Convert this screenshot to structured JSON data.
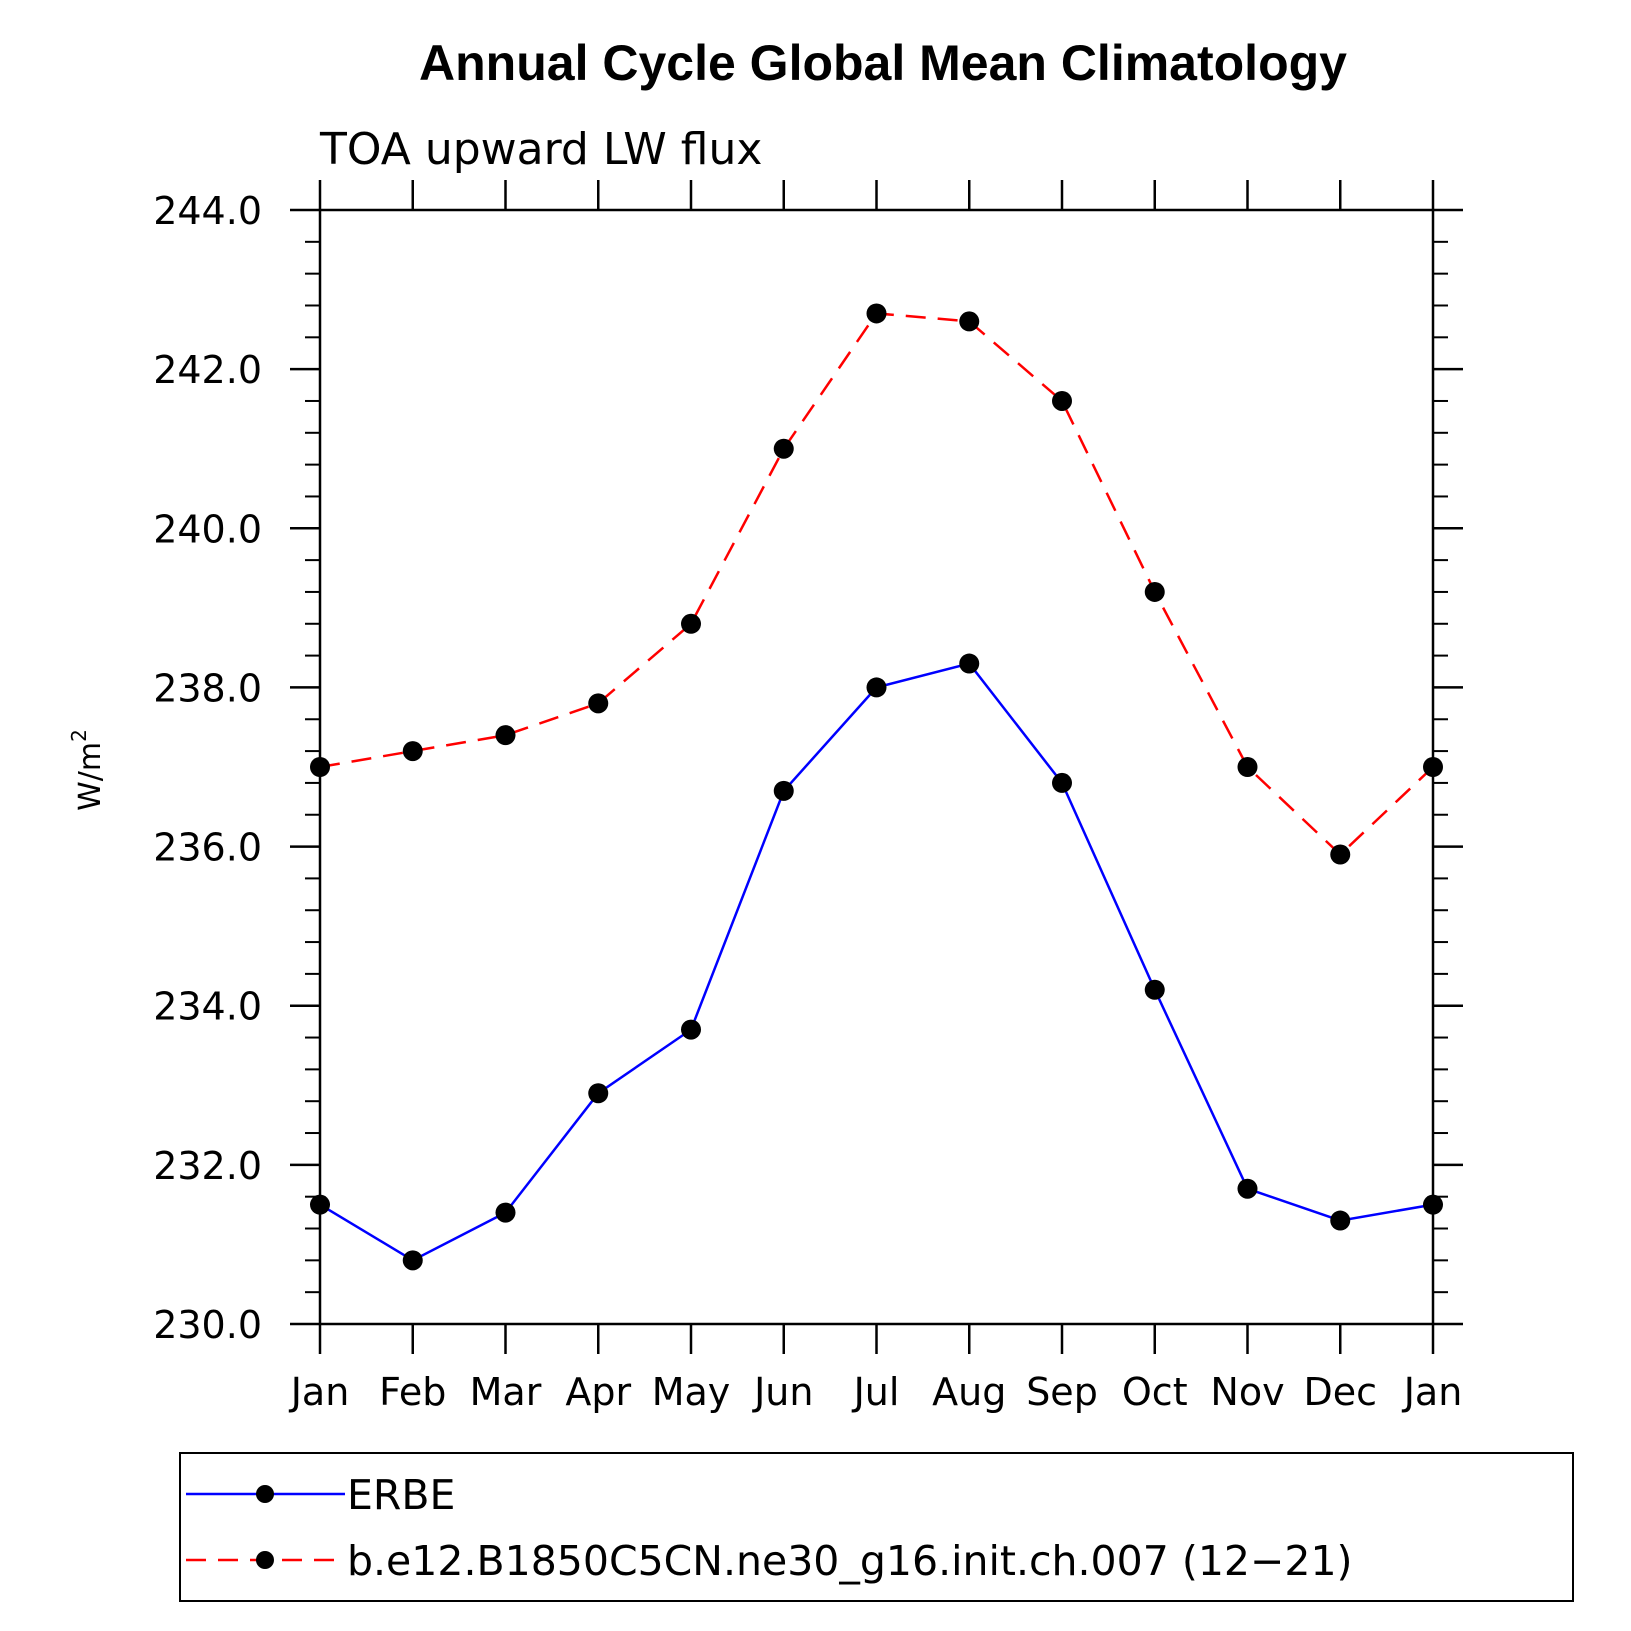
{
  "chart_data": {
    "type": "line",
    "title": "Annual Cycle Global Mean Climatology",
    "subtitle": "TOA upward LW flux",
    "ylabel": "W/m",
    "ylabel_superscript": "2",
    "xlabel": "",
    "categories": [
      "Jan",
      "Feb",
      "Mar",
      "Apr",
      "May",
      "Jun",
      "Jul",
      "Aug",
      "Sep",
      "Oct",
      "Nov",
      "Dec",
      "Jan"
    ],
    "ylim": [
      230.0,
      244.0
    ],
    "yticks": [
      230.0,
      232.0,
      234.0,
      236.0,
      238.0,
      240.0,
      242.0,
      244.0
    ],
    "ytick_labels": [
      "230.0",
      "232.0",
      "234.0",
      "236.0",
      "238.0",
      "240.0",
      "242.0",
      "244.0"
    ],
    "grid": false,
    "legend_position": "bottom",
    "series": [
      {
        "name": "ERBE",
        "color": "#0000ff",
        "line_style": "solid",
        "marker": "filled-circle",
        "values": [
          231.5,
          230.8,
          231.4,
          232.9,
          233.7,
          236.7,
          238.0,
          238.3,
          236.8,
          234.2,
          231.7,
          231.3,
          231.5
        ]
      },
      {
        "name": "b.e12.B1850C5CN.ne30_g16.init.ch.007 (12−21)",
        "color": "#ff0000",
        "line_style": "dashed",
        "marker": "filled-circle",
        "values": [
          237.0,
          237.2,
          237.4,
          237.8,
          238.8,
          241.0,
          242.7,
          242.6,
          241.6,
          239.2,
          237.0,
          235.9,
          237.0
        ]
      }
    ]
  }
}
